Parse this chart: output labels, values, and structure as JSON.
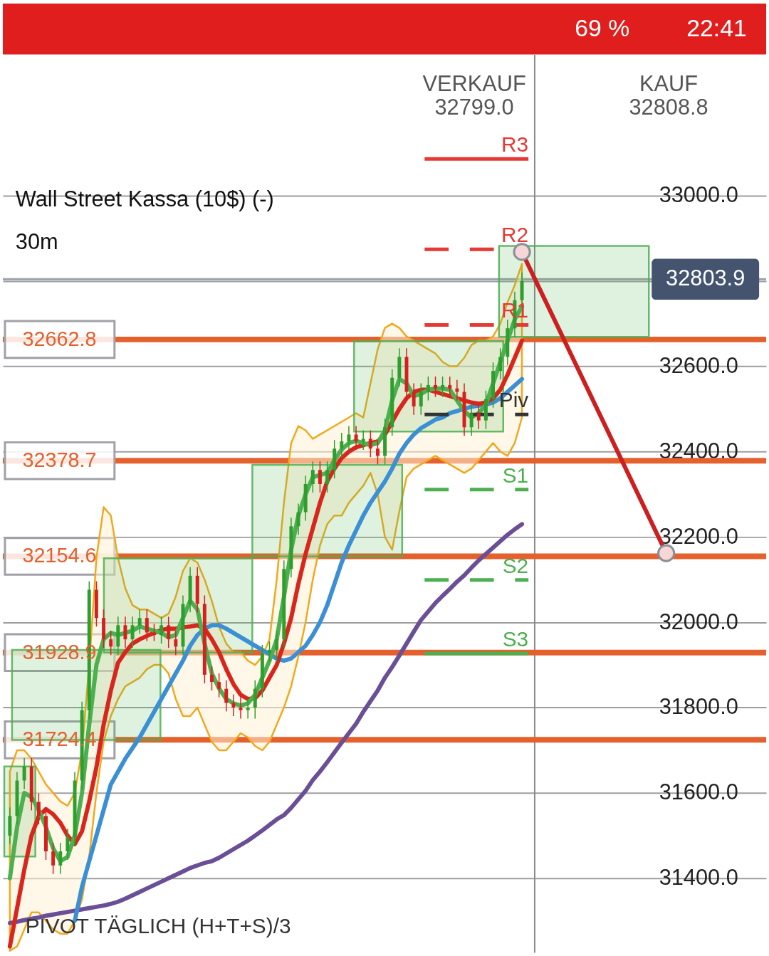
{
  "chart_data": {
    "type": "candlestick",
    "title": "Wall Street Kassa (10$) (-)",
    "subtitle": "30m",
    "categories": [
      null,
      null,
      null,
      null,
      null,
      null,
      null,
      null,
      null,
      null,
      null,
      null,
      null,
      null,
      null,
      null,
      null,
      null,
      null,
      null,
      null,
      null,
      null,
      null,
      null,
      null,
      null,
      null,
      null,
      null,
      null,
      null,
      null,
      null,
      null,
      null,
      null,
      null,
      null,
      null,
      null,
      null,
      null,
      null,
      null,
      null,
      null,
      null,
      null,
      null,
      null,
      null,
      null,
      null,
      null,
      null,
      null,
      null,
      null,
      null,
      null,
      null,
      null,
      null,
      null,
      null,
      null,
      null,
      null,
      null,
      null,
      null,
      null,
      null,
      null,
      null,
      null,
      null,
      null,
      null,
      null,
      null,
      null,
      null,
      null,
      null,
      null,
      null,
      null,
      null,
      null,
      null
    ],
    "ohlc": [
      [
        31500,
        31566,
        31480,
        31546
      ],
      [
        31546,
        31649,
        31526,
        31629
      ],
      [
        31629,
        31682,
        31609,
        31662
      ],
      [
        31662,
        31682,
        31559,
        31579
      ],
      [
        31579,
        31599,
        31526,
        31546
      ],
      [
        31546,
        31566,
        31443,
        31463
      ],
      [
        31463,
        31483,
        31410,
        31430
      ],
      [
        31430,
        31483,
        31410,
        31463
      ],
      [
        31463,
        31516,
        31443,
        31496
      ],
      [
        31496,
        31649,
        31476,
        31629
      ],
      [
        31629,
        31814,
        31609,
        31794
      ],
      [
        31794,
        32096,
        31774,
        32076
      ],
      [
        32076,
        32096,
        31990,
        32010
      ],
      [
        32010,
        32030,
        31940,
        31960
      ],
      [
        31960,
        31980,
        31923,
        31943
      ],
      [
        31943,
        32013,
        31923,
        31993
      ],
      [
        31993,
        32013,
        31940,
        31960
      ],
      [
        31960,
        32013,
        31940,
        31993
      ],
      [
        31993,
        32030,
        31973,
        32010
      ],
      [
        32010,
        32030,
        31956,
        31976
      ],
      [
        31976,
        31996,
        31956,
        31970
      ],
      [
        31970,
        32013,
        31950,
        31993
      ],
      [
        31993,
        32013,
        31940,
        31960
      ],
      [
        31960,
        31980,
        31923,
        31943
      ],
      [
        31943,
        32063,
        31923,
        32043
      ],
      [
        32043,
        32129,
        32023,
        32109
      ],
      [
        32109,
        32129,
        32023,
        32043
      ],
      [
        32043,
        32063,
        31857,
        31877
      ],
      [
        31877,
        31897,
        31840,
        31860
      ],
      [
        31860,
        31880,
        31824,
        31844
      ],
      [
        31844,
        31864,
        31791,
        31811
      ],
      [
        31811,
        31831,
        31780,
        31800
      ],
      [
        31800,
        31831,
        31774,
        31794
      ],
      [
        31794,
        31820,
        31774,
        31800
      ],
      [
        31800,
        31864,
        31774,
        31844
      ],
      [
        31844,
        31947,
        31824,
        31927
      ],
      [
        31927,
        31955,
        31907,
        31935
      ],
      [
        31935,
        31980,
        31907,
        31960
      ],
      [
        31960,
        32145,
        31940,
        32125
      ],
      [
        32125,
        32245,
        32105,
        32225
      ],
      [
        32225,
        32278,
        32205,
        32258
      ],
      [
        32258,
        32344,
        32238,
        32324
      ],
      [
        32324,
        32377,
        32304,
        32357
      ],
      [
        32357,
        32377,
        32304,
        32324
      ],
      [
        32324,
        32377,
        32304,
        32357
      ],
      [
        32357,
        32427,
        32337,
        32407
      ],
      [
        32407,
        32444,
        32387,
        32424
      ],
      [
        32424,
        32460,
        32404,
        32440
      ],
      [
        32440,
        32460,
        32404,
        32424
      ],
      [
        32424,
        32450,
        32404,
        32430
      ],
      [
        32430,
        32450,
        32387,
        32407
      ],
      [
        32407,
        32427,
        32370,
        32390
      ],
      [
        32390,
        32477,
        32370,
        32457
      ],
      [
        32457,
        32593,
        32437,
        32573
      ],
      [
        32573,
        32642,
        32553,
        32622
      ],
      [
        32622,
        32642,
        32520,
        32540
      ],
      [
        32540,
        32560,
        32486,
        32506
      ],
      [
        32506,
        32560,
        32486,
        32540
      ],
      [
        32540,
        32576,
        32520,
        32556
      ],
      [
        32556,
        32576,
        32528,
        32548
      ],
      [
        32548,
        32576,
        32528,
        32556
      ],
      [
        32556,
        32576,
        32528,
        32548
      ],
      [
        32548,
        32568,
        32520,
        32540
      ],
      [
        32540,
        32560,
        32437,
        32457
      ],
      [
        32457,
        32510,
        32437,
        32490
      ],
      [
        32490,
        32510,
        32453,
        32473
      ],
      [
        32473,
        32543,
        32453,
        32523
      ],
      [
        32523,
        32609,
        32503,
        32589
      ],
      [
        32589,
        32642,
        32569,
        32622
      ],
      [
        32622,
        32709,
        32602,
        32689
      ],
      [
        32689,
        32775,
        32669,
        32755
      ],
      [
        32755,
        32820,
        32735,
        32800
      ],
      null,
      null,
      null,
      null,
      null,
      null,
      null,
      null,
      null,
      null,
      null,
      null,
      null,
      null,
      null,
      null,
      null,
      null,
      null,
      null
    ],
    "series": [
      {
        "type": "line",
        "color": "#6b4f96",
        "values": [
          31295,
          31298,
          31302,
          31305,
          31308,
          31312,
          31315,
          31318,
          31321,
          31324,
          31327,
          31330,
          31333,
          31336,
          31340,
          31345,
          31352,
          31360,
          31368,
          31376,
          31384,
          31392,
          31400,
          31408,
          31416,
          31424,
          31430,
          31436,
          31440,
          31448,
          31458,
          31468,
          31478,
          31488,
          31500,
          31512,
          31525,
          31538,
          31548,
          31565,
          31585,
          31605,
          31630,
          31650,
          31672,
          31695,
          31718,
          31740,
          31762,
          31790,
          31815,
          31840,
          31870,
          31895,
          31922,
          31950,
          31978,
          32005,
          32025,
          32045,
          32062,
          32078,
          32095,
          32110,
          32128,
          32145,
          32160,
          32175,
          32190,
          32205,
          32218,
          32230,
          null,
          null,
          null,
          null,
          null,
          null,
          null,
          null,
          null,
          null,
          null,
          null,
          null,
          null,
          null,
          null,
          null,
          null,
          null,
          null
        ]
      },
      {
        "type": "line",
        "color": "#3b8fd4",
        "values": [
          null,
          null,
          null,
          null,
          null,
          null,
          null,
          null,
          null,
          31300,
          31380,
          31440,
          31500,
          31560,
          31620,
          31650,
          31680,
          31705,
          31730,
          31760,
          31790,
          31820,
          31850,
          31880,
          31910,
          31945,
          31970,
          31985,
          31993,
          31993,
          31985,
          31975,
          31965,
          31955,
          31945,
          31935,
          31925,
          31915,
          31910,
          31915,
          31930,
          31945,
          31970,
          32000,
          32040,
          32090,
          32140,
          32180,
          32215,
          32250,
          32280,
          32305,
          32330,
          32360,
          32395,
          32420,
          32440,
          32455,
          32465,
          32475,
          32480,
          32490,
          32495,
          32500,
          32505,
          32508,
          32510,
          32515,
          32525,
          32540,
          32555,
          32570,
          null,
          null,
          null,
          null,
          null,
          null,
          null,
          null,
          null,
          null,
          null,
          null,
          null,
          null,
          null,
          null,
          null,
          null,
          null,
          null
        ]
      },
      {
        "type": "line",
        "color": "#d9261c",
        "values": [
          31240,
          31330,
          31420,
          31500,
          31545,
          31562,
          31550,
          31530,
          31500,
          31480,
          31510,
          31580,
          31660,
          31760,
          31840,
          31905,
          31930,
          31950,
          31960,
          31968,
          31975,
          31982,
          31985,
          31985,
          31988,
          31990,
          31993,
          31985,
          31960,
          31930,
          31890,
          31855,
          31830,
          31820,
          31822,
          31840,
          31870,
          31900,
          31950,
          32010,
          32090,
          32160,
          32220,
          32280,
          32330,
          32360,
          32385,
          32400,
          32410,
          32415,
          32420,
          32424,
          32440,
          32470,
          32500,
          32525,
          32540,
          32545,
          32545,
          32540,
          32535,
          32530,
          32525,
          32520,
          32515,
          32512,
          32515,
          32525,
          32545,
          32580,
          32620,
          32660,
          null,
          null,
          null,
          null,
          null,
          null,
          null,
          null,
          null,
          null,
          null,
          null,
          null,
          null,
          null,
          null,
          null,
          null,
          null,
          null
        ],
        "upper": [
          31650,
          31700,
          31700,
          31680,
          31650,
          31620,
          31600,
          31580,
          31570,
          31600,
          31700,
          31900,
          32150,
          32270,
          32250,
          32150,
          32080,
          32040,
          32030,
          32030,
          32020,
          32010,
          32020,
          32060,
          32120,
          32150,
          32140,
          32100,
          32050,
          31990,
          31950,
          31930,
          31930,
          31910,
          31900,
          31920,
          31960,
          32100,
          32280,
          32420,
          32460,
          32450,
          32430,
          32440,
          32450,
          32460,
          32470,
          32480,
          32490,
          32480,
          32560,
          32640,
          32690,
          32700,
          32690,
          32670,
          32660,
          32650,
          32640,
          32630,
          32610,
          32600,
          32600,
          32620,
          32650,
          32660,
          32660,
          32670,
          32700,
          32750,
          32790,
          32840,
          null,
          null,
          null,
          null,
          null,
          null,
          null,
          null,
          null,
          null,
          null,
          null,
          null,
          null,
          null,
          null,
          null,
          null,
          null,
          null
        ],
        "lower": [
          31230,
          31240,
          31280,
          31320,
          31320,
          31300,
          31280,
          31270,
          31270,
          31300,
          31350,
          31450,
          31600,
          31720,
          31780,
          31820,
          31850,
          31860,
          31870,
          31890,
          31900,
          31900,
          31880,
          31820,
          31780,
          31780,
          31800,
          31760,
          31720,
          31700,
          31700,
          31720,
          31740,
          31730,
          31710,
          31700,
          31720,
          31760,
          31800,
          31850,
          31920,
          32000,
          32100,
          32180,
          32230,
          32250,
          32250,
          32280,
          32300,
          32320,
          32350,
          32300,
          32200,
          32170,
          32260,
          32340,
          32360,
          32370,
          32380,
          32390,
          32380,
          32370,
          32360,
          32350,
          32360,
          32380,
          32400,
          32420,
          32400,
          32390,
          32420,
          32480,
          null,
          null,
          null,
          null,
          null,
          null,
          null,
          null,
          null,
          null,
          null,
          null,
          null,
          null,
          null,
          null,
          null,
          null,
          null,
          null
        ]
      },
      {
        "type": "line",
        "color": "#4caf50",
        "values": [
          31400,
          31520,
          31600,
          31590,
          31560,
          31520,
          31470,
          31440,
          31450,
          31500,
          31600,
          31760,
          31900,
          31960,
          31975,
          31970,
          31975,
          31980,
          31990,
          31985,
          31980,
          31975,
          31965,
          31970,
          32010,
          32050,
          32030,
          31950,
          31880,
          31845,
          31820,
          31810,
          31805,
          31810,
          31830,
          31870,
          31910,
          31960,
          32060,
          32170,
          32250,
          32300,
          32340,
          32345,
          32350,
          32380,
          32405,
          32420,
          32425,
          32420,
          32415,
          32420,
          32450,
          32520,
          32570,
          32560,
          32530,
          32535,
          32545,
          32548,
          32548,
          32545,
          32520,
          32495,
          32480,
          32490,
          32510,
          32560,
          32610,
          32660,
          32710,
          32740,
          null,
          null,
          null,
          null,
          null,
          null,
          null,
          null,
          null,
          null,
          null,
          null,
          null,
          null,
          null,
          null,
          null,
          null,
          null,
          null
        ]
      },
      {
        "type": "line",
        "color": "#cc1f1f",
        "marker": "circle",
        "values": [
          null,
          null,
          null,
          null,
          null,
          null,
          null,
          null,
          null,
          null,
          null,
          null,
          null,
          null,
          null,
          null,
          null,
          null,
          null,
          null,
          null,
          null,
          null,
          null,
          null,
          null,
          null,
          null,
          null,
          null,
          null,
          null,
          null,
          null,
          null,
          null,
          null,
          null,
          null,
          null,
          null,
          null,
          null,
          null,
          null,
          null,
          null,
          null,
          null,
          null,
          null,
          null,
          null,
          null,
          null,
          null,
          null,
          null,
          null,
          null,
          null,
          null,
          null,
          null,
          null,
          null,
          null,
          null,
          null,
          null,
          null,
          32868,
          null,
          null,
          null,
          null,
          null,
          null,
          null,
          null,
          null,
          null,
          null,
          null,
          null,
          null,
          null,
          null,
          null,
          null,
          null,
          32162
        ]
      }
    ],
    "bands": [
      {
        "axis": "y",
        "from": 31451,
        "to": 31662,
        "color": "#4caf50"
      },
      {
        "axis": "y",
        "from": 31724,
        "to": 31935,
        "color": "#4caf50"
      },
      {
        "axis": "y",
        "from": 31929,
        "to": 32150,
        "color": "#4caf50"
      },
      {
        "axis": "y",
        "from": 32154,
        "to": 32369,
        "color": "#4caf50"
      },
      {
        "axis": "y",
        "from": 32447,
        "to": 32659,
        "color": "#4caf50"
      },
      {
        "axis": "y",
        "from": 32669,
        "to": 32882,
        "color": "#4caf50"
      }
    ],
    "ylim": [
      31226,
      33331
    ],
    "yticks": [
      {
        "value": 31400,
        "label": "31400.0"
      },
      {
        "value": 31600,
        "label": "31600.0"
      },
      {
        "value": 31800,
        "label": "31800.0"
      },
      {
        "value": 32000,
        "label": "32000.0"
      },
      {
        "value": 32200,
        "label": "32200.0"
      },
      {
        "value": 32400,
        "label": "32400.0"
      },
      {
        "value": 32600,
        "label": "32600.0"
      },
      {
        "value": 32800,
        "label": null
      },
      {
        "value": 33000,
        "label": "33000.0"
      }
    ],
    "grid": "y",
    "tick_labels": "y",
    "ref_lines": [
      {
        "axis": "y",
        "value": 32662.8,
        "label": "32662.8",
        "color": "#e4602c"
      },
      {
        "axis": "y",
        "value": 32378.7,
        "label": "32378.7",
        "color": "#e4602c"
      },
      {
        "axis": "y",
        "value": 32154.6,
        "label": "32154.6",
        "color": "#e4602c"
      },
      {
        "axis": "y",
        "value": 31928.9,
        "label": "31928.9",
        "color": "#e4602c"
      },
      {
        "axis": "y",
        "value": 31724.4,
        "label": "31724.4",
        "color": "#e4602c"
      },
      {
        "axis": "y",
        "value": 33086,
        "label": "R3",
        "color": "#e53935",
        "line_style": "solid"
      },
      {
        "axis": "y",
        "value": 32874,
        "label": "R2",
        "color": "#e53935",
        "line_style": "dashed"
      },
      {
        "axis": "y",
        "value": 32697,
        "label": "R1",
        "color": "#e53935",
        "line_style": "dashed"
      },
      {
        "axis": "y",
        "value": 32487,
        "label": "Piv",
        "color": "#333333",
        "line_style": "dashed"
      },
      {
        "axis": "y",
        "value": 32311,
        "label": "S1",
        "color": "#4caf50",
        "line_style": "dashed"
      },
      {
        "axis": "y",
        "value": 32099,
        "label": "S2",
        "color": "#4caf50",
        "line_style": "dashed"
      },
      {
        "axis": "y",
        "value": 31927,
        "label": "S3",
        "color": "#4caf50",
        "line_style": "solid"
      },
      {
        "axis": "y",
        "value": 32803.9,
        "label": "32803.9",
        "color": "#9aa0a8"
      }
    ],
    "annotations": [
      "VERKAUF",
      "32799.0",
      "KAUF",
      "32808.8",
      "PIVOT   TÄGLICH   (H+T+S)/3",
      "69 %",
      "22:41"
    ]
  }
}
